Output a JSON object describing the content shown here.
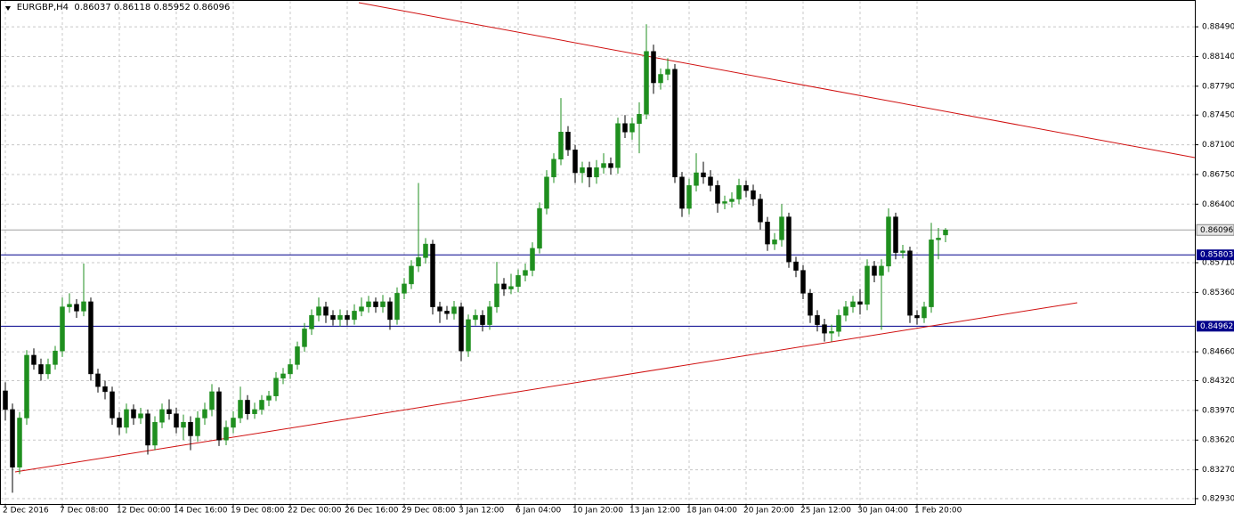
{
  "chart_data": {
    "type": "candlestick",
    "symbol": "EURGBP,H4",
    "up_color": "#1f8f1f",
    "down_color": "#000000",
    "grid": true,
    "ylim": [
      0.82867,
      0.88806
    ],
    "yticks": [
      {
        "value": 0.8849,
        "label": "0.88490"
      },
      {
        "value": 0.8814,
        "label": "0.88140"
      },
      {
        "value": 0.8779,
        "label": "0.87790"
      },
      {
        "value": 0.8745,
        "label": "0.87450"
      },
      {
        "value": 0.871,
        "label": "0.87100"
      },
      {
        "value": 0.8675,
        "label": "0.86750"
      },
      {
        "value": 0.864,
        "label": "0.86400"
      },
      {
        "value": 0.8571,
        "label": "0.85710"
      },
      {
        "value": 0.8536,
        "label": "0.85360"
      },
      {
        "value": 0.8466,
        "label": "0.84660"
      },
      {
        "value": 0.8432,
        "label": "0.84320"
      },
      {
        "value": 0.8397,
        "label": "0.83970"
      },
      {
        "value": 0.8362,
        "label": "0.83620"
      },
      {
        "value": 0.8327,
        "label": "0.83270"
      },
      {
        "value": 0.8293,
        "label": "0.82930"
      }
    ],
    "levels": [
      {
        "value": 0.85803,
        "color": "#00008b"
      },
      {
        "value": 0.84962,
        "color": "#00008b"
      }
    ],
    "categories": [
      "2 Dec 2016",
      null,
      null,
      null,
      null,
      null,
      null,
      null,
      "7 Dec 08:00",
      null,
      null,
      null,
      null,
      null,
      null,
      null,
      "12 Dec 00:00",
      null,
      null,
      null,
      null,
      null,
      null,
      null,
      "14 Dec 16:00",
      null,
      null,
      null,
      null,
      null,
      null,
      null,
      "19 Dec 08:00",
      null,
      null,
      null,
      null,
      null,
      null,
      null,
      "22 Dec 00:00",
      null,
      null,
      null,
      null,
      null,
      null,
      null,
      "26 Dec 16:00",
      null,
      null,
      null,
      null,
      null,
      null,
      null,
      "29 Dec 08:00",
      null,
      null,
      null,
      null,
      null,
      null,
      null,
      "3 Jan 12:00",
      null,
      null,
      null,
      null,
      null,
      null,
      null,
      "6 Jan 04:00",
      null,
      null,
      null,
      null,
      null,
      null,
      null,
      "10 Jan 20:00",
      null,
      null,
      null,
      null,
      null,
      null,
      null,
      "13 Jan 12:00",
      null,
      null,
      null,
      null,
      null,
      null,
      null,
      "18 Jan 04:00",
      null,
      null,
      null,
      null,
      null,
      null,
      null,
      "20 Jan 20:00",
      null,
      null,
      null,
      null,
      null,
      null,
      null,
      "25 Jan 12:00",
      null,
      null,
      null,
      null,
      null,
      null,
      null,
      "30 Jan 04:00",
      null,
      null,
      null,
      null,
      null,
      null,
      null,
      "1 Feb 20:00",
      null,
      null,
      null,
      null
    ],
    "candles": [
      [
        0.842,
        0.843,
        0.8385,
        0.8398
      ],
      [
        0.8398,
        0.8405,
        0.83,
        0.833
      ],
      [
        0.833,
        0.8395,
        0.8322,
        0.8388
      ],
      [
        0.8388,
        0.8468,
        0.838,
        0.8462
      ],
      [
        0.8462,
        0.847,
        0.8445,
        0.8451
      ],
      [
        0.8451,
        0.8458,
        0.8432,
        0.844
      ],
      [
        0.844,
        0.8458,
        0.8434,
        0.8451
      ],
      [
        0.8451,
        0.8473,
        0.8445,
        0.8467
      ],
      [
        0.8467,
        0.853,
        0.846,
        0.8519
      ],
      [
        0.8519,
        0.8535,
        0.8512,
        0.8522
      ],
      [
        0.8522,
        0.8528,
        0.8506,
        0.8514
      ],
      [
        0.8514,
        0.857,
        0.8508,
        0.8525
      ],
      [
        0.8525,
        0.853,
        0.8432,
        0.844
      ],
      [
        0.844,
        0.8446,
        0.8418,
        0.8425
      ],
      [
        0.8425,
        0.8432,
        0.841,
        0.8419
      ],
      [
        0.8419,
        0.8425,
        0.838,
        0.8388
      ],
      [
        0.8388,
        0.8395,
        0.8368,
        0.8377
      ],
      [
        0.8377,
        0.8405,
        0.837,
        0.8398
      ],
      [
        0.8398,
        0.8404,
        0.838,
        0.8388
      ],
      [
        0.8388,
        0.84,
        0.8381,
        0.8393
      ],
      [
        0.8393,
        0.8398,
        0.8345,
        0.8356
      ],
      [
        0.8356,
        0.839,
        0.835,
        0.8383
      ],
      [
        0.8383,
        0.8405,
        0.8376,
        0.8398
      ],
      [
        0.8398,
        0.841,
        0.8386,
        0.8393
      ],
      [
        0.8393,
        0.84,
        0.837,
        0.8377
      ],
      [
        0.8377,
        0.8392,
        0.8362,
        0.8383
      ],
      [
        0.8383,
        0.839,
        0.835,
        0.8367
      ],
      [
        0.8367,
        0.8396,
        0.836,
        0.8388
      ],
      [
        0.8388,
        0.8406,
        0.838,
        0.8398
      ],
      [
        0.8398,
        0.8428,
        0.839,
        0.8419
      ],
      [
        0.8419,
        0.8424,
        0.8355,
        0.8362
      ],
      [
        0.8362,
        0.8385,
        0.8356,
        0.8377
      ],
      [
        0.8377,
        0.8396,
        0.837,
        0.8388
      ],
      [
        0.8388,
        0.8425,
        0.8382,
        0.8409
      ],
      [
        0.8409,
        0.8415,
        0.8386,
        0.8393
      ],
      [
        0.8393,
        0.8406,
        0.8387,
        0.8398
      ],
      [
        0.8398,
        0.8415,
        0.8392,
        0.8409
      ],
      [
        0.8409,
        0.842,
        0.8402,
        0.8414
      ],
      [
        0.8414,
        0.8442,
        0.8408,
        0.8435
      ],
      [
        0.8435,
        0.8447,
        0.8428,
        0.844
      ],
      [
        0.844,
        0.8458,
        0.8434,
        0.8451
      ],
      [
        0.8451,
        0.8478,
        0.8445,
        0.8472
      ],
      [
        0.8472,
        0.85,
        0.8466,
        0.8493
      ],
      [
        0.8493,
        0.8516,
        0.8486,
        0.8509
      ],
      [
        0.8509,
        0.853,
        0.8502,
        0.8519
      ],
      [
        0.8519,
        0.8525,
        0.85,
        0.8509
      ],
      [
        0.8509,
        0.8515,
        0.8497,
        0.8504
      ],
      [
        0.8504,
        0.8516,
        0.8496,
        0.8509
      ],
      [
        0.8509,
        0.8515,
        0.8497,
        0.8504
      ],
      [
        0.8504,
        0.8522,
        0.8498,
        0.8514
      ],
      [
        0.8514,
        0.853,
        0.8508,
        0.8519
      ],
      [
        0.8519,
        0.8532,
        0.8512,
        0.8525
      ],
      [
        0.8525,
        0.853,
        0.8512,
        0.8519
      ],
      [
        0.8519,
        0.8533,
        0.8512,
        0.8525
      ],
      [
        0.8525,
        0.853,
        0.8492,
        0.8504
      ],
      [
        0.8504,
        0.8542,
        0.8498,
        0.8535
      ],
      [
        0.8535,
        0.8553,
        0.8528,
        0.8546
      ],
      [
        0.8546,
        0.8574,
        0.854,
        0.8567
      ],
      [
        0.8567,
        0.8665,
        0.856,
        0.8577
      ],
      [
        0.8577,
        0.86,
        0.857,
        0.8593
      ],
      [
        0.8593,
        0.8598,
        0.851,
        0.8519
      ],
      [
        0.8519,
        0.8525,
        0.85,
        0.8514
      ],
      [
        0.8514,
        0.852,
        0.8504,
        0.8511
      ],
      [
        0.8511,
        0.8526,
        0.8504,
        0.8519
      ],
      [
        0.8519,
        0.8524,
        0.8455,
        0.8467
      ],
      [
        0.8467,
        0.851,
        0.846,
        0.8504
      ],
      [
        0.8504,
        0.8516,
        0.8497,
        0.8509
      ],
      [
        0.8509,
        0.8515,
        0.849,
        0.8498
      ],
      [
        0.8498,
        0.8526,
        0.8492,
        0.8519
      ],
      [
        0.8519,
        0.8572,
        0.8512,
        0.8546
      ],
      [
        0.8546,
        0.8553,
        0.8532,
        0.854
      ],
      [
        0.854,
        0.8558,
        0.8534,
        0.8543
      ],
      [
        0.8543,
        0.8563,
        0.8536,
        0.8556
      ],
      [
        0.8556,
        0.857,
        0.8549,
        0.8562
      ],
      [
        0.8562,
        0.8595,
        0.8555,
        0.8588
      ],
      [
        0.8588,
        0.8642,
        0.8582,
        0.8635
      ],
      [
        0.8635,
        0.868,
        0.8628,
        0.8672
      ],
      [
        0.8672,
        0.87,
        0.8665,
        0.8693
      ],
      [
        0.8693,
        0.8765,
        0.8686,
        0.8725
      ],
      [
        0.8725,
        0.8732,
        0.8697,
        0.8704
      ],
      [
        0.8704,
        0.871,
        0.8665,
        0.8677
      ],
      [
        0.8677,
        0.869,
        0.8665,
        0.8683
      ],
      [
        0.8683,
        0.869,
        0.866,
        0.8672
      ],
      [
        0.8672,
        0.8692,
        0.8664,
        0.8683
      ],
      [
        0.8683,
        0.87,
        0.8676,
        0.8688
      ],
      [
        0.8688,
        0.8695,
        0.8675,
        0.8683
      ],
      [
        0.8683,
        0.8742,
        0.8676,
        0.8735
      ],
      [
        0.8735,
        0.8745,
        0.8718,
        0.8725
      ],
      [
        0.8725,
        0.8742,
        0.8716,
        0.8735
      ],
      [
        0.8735,
        0.876,
        0.87,
        0.8746
      ],
      [
        0.8746,
        0.8852,
        0.874,
        0.882
      ],
      [
        0.882,
        0.8828,
        0.877,
        0.8783
      ],
      [
        0.8783,
        0.88,
        0.8775,
        0.8793
      ],
      [
        0.8793,
        0.8812,
        0.8786,
        0.8799
      ],
      [
        0.8799,
        0.8805,
        0.8665,
        0.8672
      ],
      [
        0.8672,
        0.8678,
        0.8625,
        0.8635
      ],
      [
        0.8635,
        0.867,
        0.8628,
        0.8662
      ],
      [
        0.8662,
        0.87,
        0.8655,
        0.8677
      ],
      [
        0.8677,
        0.869,
        0.8664,
        0.8672
      ],
      [
        0.8672,
        0.868,
        0.8655,
        0.8662
      ],
      [
        0.8662,
        0.8668,
        0.863,
        0.8641
      ],
      [
        0.8641,
        0.865,
        0.8634,
        0.8643
      ],
      [
        0.8643,
        0.8654,
        0.8636,
        0.8646
      ],
      [
        0.8646,
        0.867,
        0.864,
        0.8662
      ],
      [
        0.8662,
        0.8668,
        0.8648,
        0.8656
      ],
      [
        0.8656,
        0.8663,
        0.8638,
        0.8646
      ],
      [
        0.8646,
        0.8652,
        0.861,
        0.8619
      ],
      [
        0.8619,
        0.8625,
        0.8585,
        0.8593
      ],
      [
        0.8593,
        0.8606,
        0.8586,
        0.8598
      ],
      [
        0.8598,
        0.864,
        0.859,
        0.8625
      ],
      [
        0.8625,
        0.863,
        0.8565,
        0.8572
      ],
      [
        0.8572,
        0.8578,
        0.8554,
        0.8562
      ],
      [
        0.8562,
        0.8568,
        0.8528,
        0.8535
      ],
      [
        0.8535,
        0.854,
        0.85,
        0.8509
      ],
      [
        0.8509,
        0.8515,
        0.849,
        0.8498
      ],
      [
        0.8498,
        0.8505,
        0.8478,
        0.8488
      ],
      [
        0.8488,
        0.8498,
        0.8478,
        0.849
      ],
      [
        0.849,
        0.8516,
        0.8484,
        0.8509
      ],
      [
        0.8509,
        0.8526,
        0.8502,
        0.8519
      ],
      [
        0.8519,
        0.8532,
        0.8512,
        0.8525
      ],
      [
        0.8525,
        0.854,
        0.851,
        0.8522
      ],
      [
        0.8522,
        0.8575,
        0.8515,
        0.8567
      ],
      [
        0.8567,
        0.8573,
        0.8548,
        0.8556
      ],
      [
        0.8556,
        0.8575,
        0.8492,
        0.8567
      ],
      [
        0.8567,
        0.8635,
        0.856,
        0.8625
      ],
      [
        0.8625,
        0.863,
        0.8575,
        0.8583
      ],
      [
        0.8583,
        0.8592,
        0.8576,
        0.8585
      ],
      [
        0.8585,
        0.859,
        0.85,
        0.8509
      ],
      [
        0.8509,
        0.8515,
        0.8498,
        0.8506
      ],
      [
        0.8506,
        0.8525,
        0.85,
        0.8519
      ],
      [
        0.8519,
        0.8618,
        0.8512,
        0.8598
      ],
      [
        0.8598,
        0.8612,
        0.8575,
        0.86
      ],
      [
        0.86037,
        0.86118,
        0.85952,
        0.86096
      ]
    ]
  }
}
